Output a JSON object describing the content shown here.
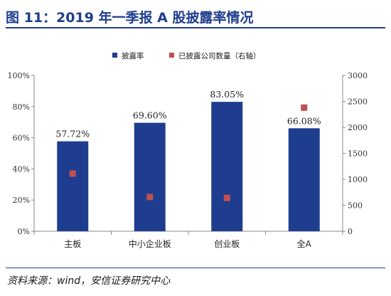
{
  "header": {
    "title": "图 11：2019 年一季报 A 股披露率情况"
  },
  "source": {
    "text": "资料来源：wind，安信证券研究中心"
  },
  "colors": {
    "bar": "#1f3d8f",
    "marker": "#c0504d",
    "rule": "#1f3d8f"
  },
  "chart_data": {
    "type": "bar",
    "title": "",
    "categories": [
      "主板",
      "中小企业板",
      "创业板",
      "全A"
    ],
    "series": [
      {
        "name": "披露率",
        "type": "bar",
        "axis": "left",
        "values": [
          57.72,
          69.6,
          83.05,
          66.08
        ],
        "data_labels": [
          "57.72%",
          "69.60%",
          "83.05%",
          "66.08%"
        ]
      },
      {
        "name": "已披露公司数量（右轴）",
        "type": "scatter",
        "axis": "right",
        "values": [
          1110,
          660,
          640,
          2380
        ]
      }
    ],
    "y_left": {
      "min": 0,
      "max": 100,
      "ticks": [
        "0%",
        "20%",
        "40%",
        "60%",
        "80%",
        "100%"
      ]
    },
    "y_right": {
      "min": 0,
      "max": 3000,
      "ticks": [
        "0",
        "500",
        "1000",
        "1500",
        "2000",
        "2500",
        "3000"
      ]
    },
    "grid": false,
    "legend": "top-center"
  }
}
